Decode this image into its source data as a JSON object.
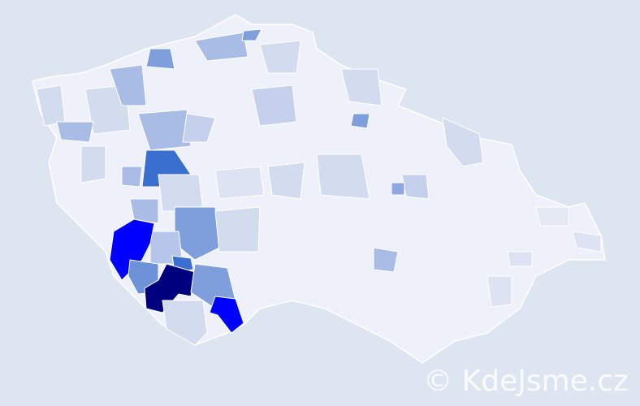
{
  "watermark": "© KdeJsme.cz",
  "map": {
    "type": "choropleth",
    "colors": {
      "background": "#dde5f1",
      "lowest": "#eef1f9",
      "low": "#d3dbee",
      "medium_low": "#a9bce6",
      "medium": "#7f9fdc",
      "high": "#3a6fd0",
      "very_high": "#0000ff",
      "highest": "#00007f",
      "border": "#ffffff"
    }
  }
}
